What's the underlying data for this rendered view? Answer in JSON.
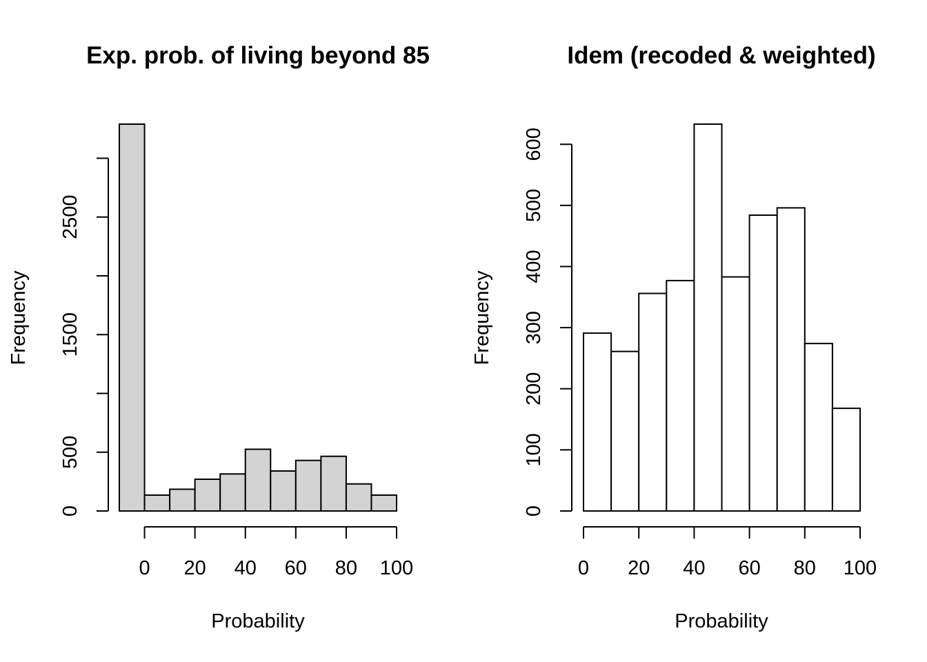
{
  "chart_data": [
    {
      "type": "bar",
      "title": "Exp. prob. of living beyond 85",
      "xlabel": "Probability",
      "ylabel": "Frequency",
      "fill": "#d3d3d3",
      "bin_edges": [
        -10,
        0,
        10,
        20,
        30,
        40,
        50,
        60,
        70,
        80,
        90,
        100
      ],
      "values": [
        3290,
        135,
        185,
        270,
        315,
        525,
        340,
        430,
        465,
        230,
        135
      ],
      "xticks": [
        0,
        20,
        40,
        60,
        80,
        100
      ],
      "xtick_labels": [
        "0",
        "20",
        "40",
        "60",
        "80",
        "100"
      ],
      "yticks": [
        0,
        500,
        1000,
        1500,
        2000,
        2500,
        3000
      ],
      "ytick_labels": [
        "0",
        "500",
        "",
        "1500",
        "",
        "2500",
        ""
      ],
      "ylim": [
        0,
        3290
      ]
    },
    {
      "type": "bar",
      "title": "Idem  (recoded & weighted)",
      "xlabel": "Probability",
      "ylabel": "Frequency",
      "fill": "#ffffff",
      "bin_edges": [
        0,
        10,
        20,
        30,
        40,
        50,
        60,
        70,
        80,
        90,
        100
      ],
      "values": [
        291,
        261,
        356,
        377,
        633,
        383,
        484,
        496,
        274,
        168
      ],
      "xticks": [
        0,
        20,
        40,
        60,
        80,
        100
      ],
      "xtick_labels": [
        "0",
        "20",
        "40",
        "60",
        "80",
        "100"
      ],
      "yticks": [
        0,
        100,
        200,
        300,
        400,
        500,
        600
      ],
      "ytick_labels": [
        "0",
        "100",
        "200",
        "300",
        "400",
        "500",
        "600"
      ],
      "ylim": [
        0,
        633
      ]
    }
  ]
}
